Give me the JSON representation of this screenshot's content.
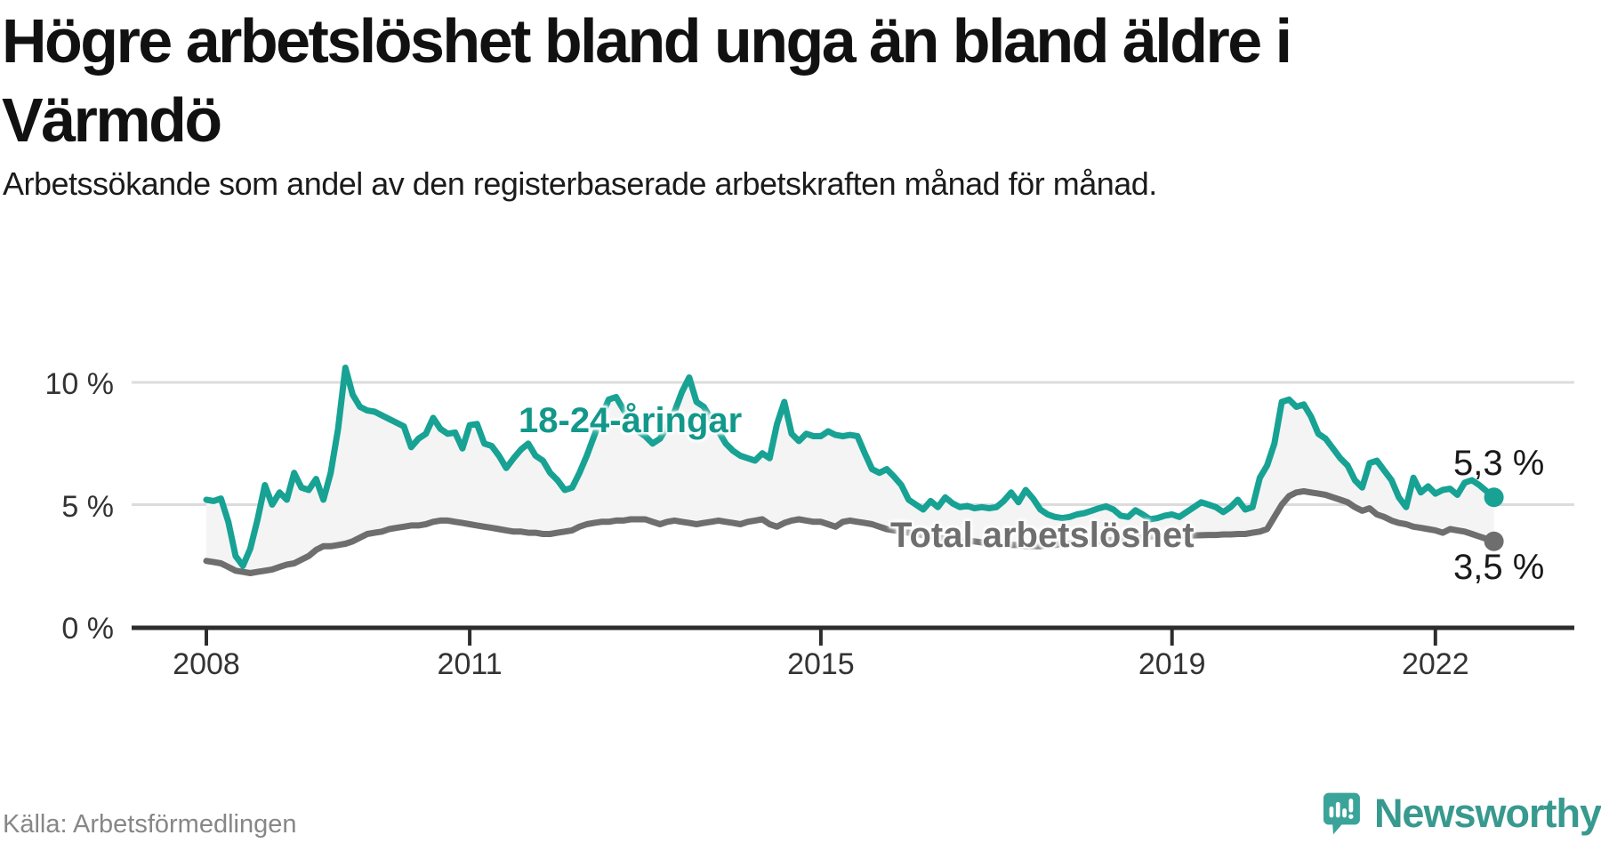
{
  "header": {
    "title_line1": "Högre arbetslöshet bland unga än bland äldre i",
    "title_line2": "Värmdö",
    "subtitle": "Arbetssökande som andel av den registerbaserade arbetskraften månad för månad."
  },
  "footer": {
    "source": "Källa: Arbetsförmedlingen",
    "brand": "Newsworthy"
  },
  "colors": {
    "young_line": "#17a294",
    "young_label": "#12988a",
    "total_line": "#6e6e6e",
    "area_fill": "#f4f4f4",
    "gridline": "#dcdcdc",
    "axis": "#2d2d2d",
    "tick_text": "#333333",
    "logo_teal": "#3aa49a"
  },
  "chart_data": {
    "type": "line",
    "title": "Högre arbetslöshet bland unga än bland äldre i Värmdö",
    "subtitle": "Arbetssökande som andel av den registerbaserade arbetskraften månad för månad.",
    "xlabel": "",
    "ylabel": "",
    "grid": "horizontal",
    "legend_position": "inline-labels",
    "ylim": [
      0,
      11.6
    ],
    "y_ticks": [
      {
        "value": 0,
        "label": "0 %"
      },
      {
        "value": 5,
        "label": "5 %"
      },
      {
        "value": 10,
        "label": "10 %"
      }
    ],
    "x_ticks": [
      {
        "year": 2008,
        "label": "2008"
      },
      {
        "year": 2011,
        "label": "2011"
      },
      {
        "year": 2015,
        "label": "2015"
      },
      {
        "year": 2019,
        "label": "2019"
      },
      {
        "year": 2022,
        "label": "2022"
      }
    ],
    "x_start": "2008-01",
    "x_end": "2022-09",
    "x_frequency": "monthly",
    "series": [
      {
        "name": "18-24-åringar",
        "end_label": "5,3 %",
        "end_value": 5.3,
        "color": "#17a294",
        "monthly_values": [
          5.2,
          5.15,
          5.25,
          4.3,
          2.9,
          2.5,
          3.2,
          4.4,
          5.8,
          5.0,
          5.5,
          5.2,
          6.3,
          5.7,
          5.6,
          6.05,
          5.2,
          6.3,
          8.1,
          10.6,
          9.5,
          9.0,
          8.85,
          8.8,
          8.65,
          8.5,
          8.35,
          8.2,
          7.35,
          7.7,
          7.9,
          8.55,
          8.1,
          7.9,
          7.95,
          7.3,
          8.25,
          8.3,
          7.5,
          7.4,
          7.0,
          6.5,
          6.9,
          7.25,
          7.5,
          7.0,
          6.8,
          6.3,
          6.0,
          5.6,
          5.7,
          6.3,
          7.0,
          7.8,
          8.6,
          9.3,
          9.4,
          8.9,
          8.4,
          8.0,
          7.8,
          7.5,
          7.7,
          8.2,
          8.8,
          9.6,
          10.2,
          9.2,
          9.0,
          8.5,
          8.0,
          7.5,
          7.2,
          7.0,
          6.9,
          6.8,
          7.1,
          6.9,
          8.3,
          9.2,
          7.9,
          7.6,
          7.9,
          7.8,
          7.8,
          8.0,
          7.85,
          7.8,
          7.85,
          7.8,
          7.1,
          6.45,
          6.3,
          6.45,
          6.15,
          5.8,
          5.2,
          5.0,
          4.8,
          5.15,
          4.9,
          5.3,
          5.05,
          4.9,
          4.95,
          4.85,
          4.9,
          4.85,
          4.9,
          5.15,
          5.5,
          5.1,
          5.6,
          5.25,
          4.8,
          4.6,
          4.5,
          4.45,
          4.5,
          4.6,
          4.65,
          4.75,
          4.85,
          4.93,
          4.8,
          4.55,
          4.5,
          4.77,
          4.6,
          4.4,
          4.45,
          4.55,
          4.6,
          4.5,
          4.7,
          4.9,
          5.1,
          5.0,
          4.9,
          4.7,
          4.9,
          5.2,
          4.8,
          4.9,
          6.1,
          6.6,
          7.5,
          9.2,
          9.3,
          9.0,
          9.1,
          8.6,
          7.9,
          7.7,
          7.3,
          6.9,
          6.6,
          6.0,
          5.7,
          6.7,
          6.8,
          6.4,
          6.0,
          5.3,
          4.9,
          6.1,
          5.5,
          5.75,
          5.45,
          5.6,
          5.65,
          5.4,
          5.9,
          6.0,
          5.8,
          5.55,
          5.3
        ]
      },
      {
        "name": "Total arbetslöshet",
        "end_label": "3,5 %",
        "end_value": 3.5,
        "color": "#6e6e6e",
        "monthly_values": [
          2.7,
          2.65,
          2.6,
          2.45,
          2.3,
          2.25,
          2.2,
          2.25,
          2.3,
          2.35,
          2.45,
          2.55,
          2.6,
          2.75,
          2.9,
          3.15,
          3.3,
          3.3,
          3.35,
          3.4,
          3.5,
          3.65,
          3.8,
          3.85,
          3.9,
          4.0,
          4.05,
          4.1,
          4.15,
          4.15,
          4.2,
          4.3,
          4.35,
          4.35,
          4.3,
          4.25,
          4.2,
          4.15,
          4.1,
          4.05,
          4.0,
          3.95,
          3.9,
          3.9,
          3.85,
          3.85,
          3.8,
          3.8,
          3.85,
          3.9,
          3.95,
          4.1,
          4.2,
          4.25,
          4.3,
          4.3,
          4.35,
          4.35,
          4.4,
          4.4,
          4.4,
          4.3,
          4.2,
          4.3,
          4.35,
          4.3,
          4.25,
          4.2,
          4.25,
          4.3,
          4.35,
          4.3,
          4.25,
          4.2,
          4.3,
          4.35,
          4.4,
          4.2,
          4.1,
          4.25,
          4.35,
          4.4,
          4.35,
          4.3,
          4.3,
          4.2,
          4.1,
          4.3,
          4.35,
          4.3,
          4.25,
          4.2,
          4.1,
          4.0,
          3.95,
          3.9,
          3.85,
          3.8,
          3.75,
          3.7,
          3.65,
          3.6,
          3.6,
          3.55,
          3.5,
          3.5,
          3.45,
          3.45,
          3.4,
          3.4,
          3.35,
          3.35,
          3.3,
          3.3,
          3.3,
          3.35,
          3.35,
          3.4,
          3.4,
          3.45,
          3.45,
          3.5,
          3.5,
          3.55,
          3.55,
          3.6,
          3.6,
          3.65,
          3.65,
          3.7,
          3.7,
          3.7,
          3.7,
          3.7,
          3.72,
          3.74,
          3.75,
          3.76,
          3.76,
          3.78,
          3.78,
          3.8,
          3.8,
          3.85,
          3.9,
          4.0,
          4.5,
          5.0,
          5.35,
          5.5,
          5.55,
          5.5,
          5.45,
          5.4,
          5.3,
          5.2,
          5.1,
          4.9,
          4.75,
          4.85,
          4.6,
          4.5,
          4.35,
          4.25,
          4.2,
          4.1,
          4.05,
          4.0,
          3.95,
          3.85,
          4.0,
          3.95,
          3.9,
          3.8,
          3.7,
          3.6,
          3.5
        ]
      }
    ]
  }
}
